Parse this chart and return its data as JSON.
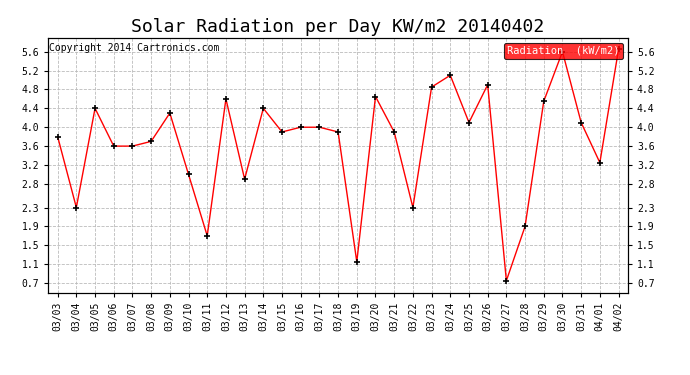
{
  "title": "Solar Radiation per Day KW/m2 20140402",
  "copyright": "Copyright 2014 Cartronics.com",
  "legend_label": "Radiation  (kW/m2)",
  "dates": [
    "03/03",
    "03/04",
    "03/05",
    "03/06",
    "03/07",
    "03/08",
    "03/09",
    "03/10",
    "03/11",
    "03/12",
    "03/13",
    "03/14",
    "03/15",
    "03/16",
    "03/17",
    "03/18",
    "03/19",
    "03/20",
    "03/21",
    "03/22",
    "03/23",
    "03/24",
    "03/25",
    "03/26",
    "03/27",
    "03/28",
    "03/29",
    "03/30",
    "03/31",
    "04/01",
    "04/02"
  ],
  "values": [
    3.8,
    2.3,
    4.4,
    3.6,
    3.6,
    3.7,
    4.3,
    3.0,
    1.7,
    4.6,
    2.9,
    4.4,
    3.9,
    4.0,
    4.0,
    3.9,
    1.15,
    4.65,
    3.9,
    2.3,
    4.85,
    5.1,
    4.1,
    4.9,
    0.75,
    1.9,
    4.55,
    5.6,
    4.1,
    3.25,
    5.65
  ],
  "line_color": "#ff0000",
  "marker_color": "#000000",
  "background_color": "#ffffff",
  "grid_color": "#bbbbbb",
  "ylim": [
    0.5,
    5.9
  ],
  "yticks": [
    0.7,
    1.1,
    1.5,
    1.9,
    2.3,
    2.8,
    3.2,
    3.6,
    4.0,
    4.4,
    4.8,
    5.2,
    5.6
  ],
  "legend_bg": "#ff0000",
  "legend_text_color": "#ffffff",
  "title_fontsize": 13,
  "tick_fontsize": 7,
  "copyright_fontsize": 7,
  "legend_fontsize": 7.5
}
